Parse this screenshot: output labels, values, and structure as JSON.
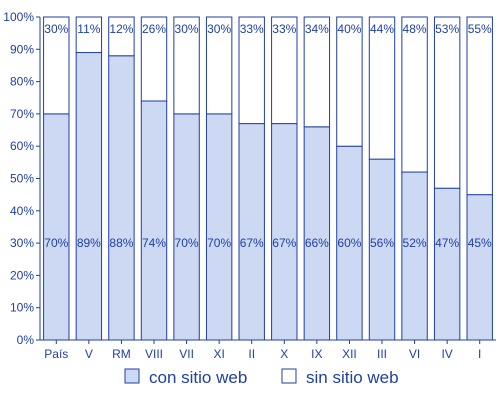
{
  "chart_data": {
    "type": "bar",
    "stacked": true,
    "percent_stacked": true,
    "title": "",
    "xlabel": "",
    "ylabel": "",
    "ylim": [
      0,
      100
    ],
    "yticks": [
      "0%",
      "10%",
      "20%",
      "30%",
      "40%",
      "50%",
      "60%",
      "70%",
      "80%",
      "90%",
      "100%"
    ],
    "grid": false,
    "legend_position": "bottom",
    "categories": [
      "País",
      "V",
      "RM",
      "VIII",
      "VII",
      "XI",
      "II",
      "X",
      "IX",
      "XII",
      "III",
      "VI",
      "IV",
      "I"
    ],
    "series": [
      {
        "name": "con sitio web",
        "color": "#cdd9f2",
        "values": [
          70,
          89,
          88,
          74,
          70,
          70,
          67,
          67,
          66,
          60,
          56,
          52,
          47,
          45
        ],
        "labels": [
          "70%",
          "89%",
          "88%",
          "74%",
          "70%",
          "70%",
          "67%",
          "67%",
          "66%",
          "60%",
          "56%",
          "52%",
          "47%",
          "45%"
        ]
      },
      {
        "name": "sin sitio web",
        "color": "#ffffff",
        "values": [
          30,
          11,
          12,
          26,
          30,
          30,
          33,
          33,
          34,
          40,
          44,
          48,
          53,
          55
        ],
        "labels": [
          "30%",
          "11%",
          "12%",
          "26%",
          "30%",
          "30%",
          "33%",
          "33%",
          "34%",
          "40%",
          "44%",
          "48%",
          "53%",
          "55%"
        ]
      }
    ],
    "stroke_color": "#1f3fa6"
  }
}
